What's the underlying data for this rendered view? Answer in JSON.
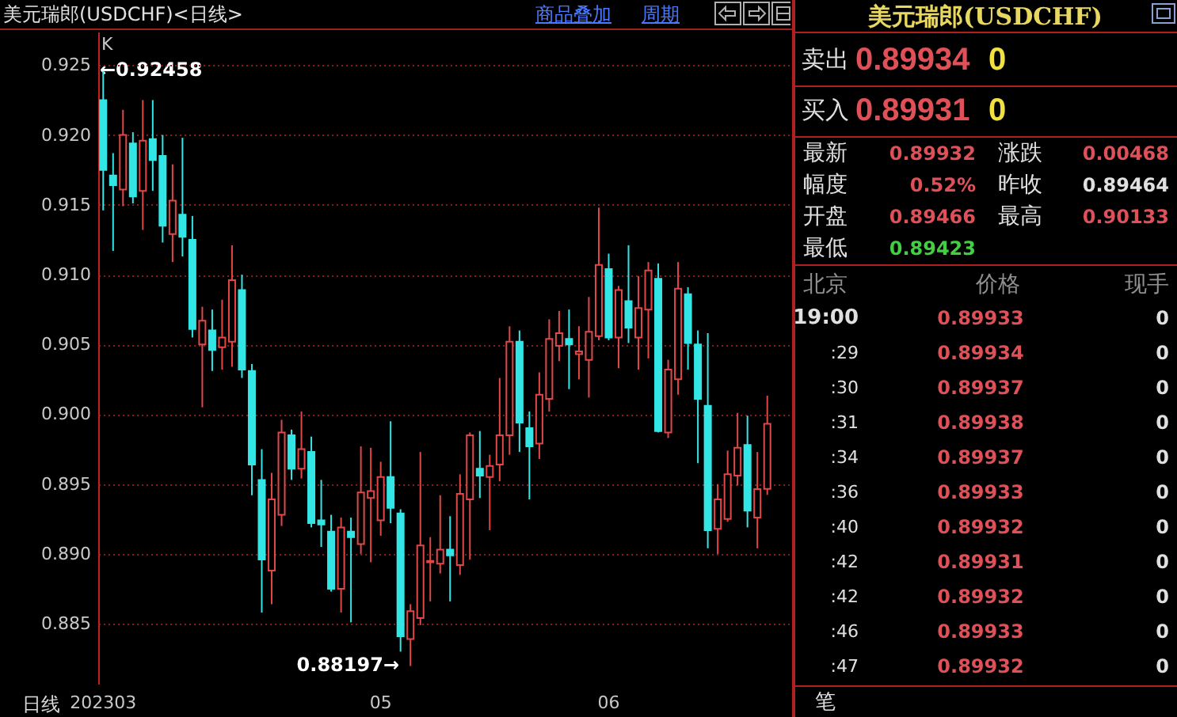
{
  "chart_data": [
    {
      "type": "candlestick",
      "title": "美元瑞郎(USDCHF)<日线>",
      "categories": [
        "202303",
        null,
        null,
        null,
        null,
        null,
        null,
        null,
        null,
        null,
        null,
        null,
        null,
        null,
        null,
        null,
        null,
        null,
        null,
        null,
        null,
        null,
        null,
        null,
        null,
        null,
        null,
        null,
        "05",
        null,
        null,
        null,
        null,
        null,
        null,
        null,
        null,
        null,
        null,
        null,
        null,
        null,
        null,
        null,
        null,
        null,
        null,
        null,
        null,
        null,
        null,
        "06",
        null,
        null,
        null,
        null,
        null,
        null,
        null,
        null,
        null,
        null,
        null,
        null,
        null,
        null,
        null,
        null
      ],
      "ohlc": [
        [
          0.9225,
          0.92458,
          0.9146,
          0.9175
        ],
        [
          0.9171,
          0.9187,
          0.9117,
          0.9164
        ],
        [
          0.9161,
          0.9218,
          0.9149,
          0.92
        ],
        [
          0.9194,
          0.9202,
          0.9151,
          0.9156
        ],
        [
          0.916,
          0.9225,
          0.9132,
          0.9196
        ],
        [
          0.9197,
          0.9225,
          0.916,
          0.9182
        ],
        [
          0.9185,
          0.92,
          0.9123,
          0.9135
        ],
        [
          0.9129,
          0.9179,
          0.9109,
          0.9153
        ],
        [
          0.9143,
          0.9198,
          0.9113,
          0.9127
        ],
        [
          0.9125,
          0.9142,
          0.9055,
          0.9061
        ],
        [
          0.905,
          0.9077,
          0.9005,
          0.9067
        ],
        [
          0.906,
          0.9075,
          0.9031,
          0.9046
        ],
        [
          0.9048,
          0.9082,
          0.9032,
          0.9055
        ],
        [
          0.9052,
          0.9121,
          0.9034,
          0.9096
        ],
        [
          0.9089,
          0.91,
          0.9026,
          0.9032
        ],
        [
          0.9031,
          0.9036,
          0.8942,
          0.8964
        ],
        [
          0.8953,
          0.8975,
          0.8858,
          0.8896
        ],
        [
          0.8888,
          0.8958,
          0.8864,
          0.8939
        ],
        [
          0.8928,
          0.8996,
          0.892,
          0.8987
        ],
        [
          0.8985,
          0.8989,
          0.8953,
          0.8961
        ],
        [
          0.8961,
          0.9002,
          0.8954,
          0.8975
        ],
        [
          0.8973,
          0.8984,
          0.8919,
          0.8922
        ],
        [
          0.8924,
          0.8953,
          0.8905,
          0.8921
        ],
        [
          0.8916,
          0.8928,
          0.8873,
          0.8875
        ],
        [
          0.8875,
          0.8926,
          0.8858,
          0.8919
        ],
        [
          0.8916,
          0.8926,
          0.8851,
          0.8912
        ],
        [
          0.8907,
          0.8977,
          0.89,
          0.8944
        ],
        [
          0.894,
          0.8976,
          0.8894,
          0.8945
        ],
        [
          0.8924,
          0.8966,
          0.8913,
          0.8955
        ],
        [
          0.8955,
          0.8995,
          0.8922,
          0.8933
        ],
        [
          0.8929,
          0.8932,
          0.883,
          0.8841
        ],
        [
          0.8839,
          0.8864,
          0.88197,
          0.8859
        ],
        [
          0.8854,
          0.8973,
          0.8849,
          0.8906
        ],
        [
          0.8894,
          0.8912,
          0.8866,
          0.8895
        ],
        [
          0.8893,
          0.8942,
          0.8886,
          0.8903
        ],
        [
          0.8903,
          0.8927,
          0.8866,
          0.8899
        ],
        [
          0.8892,
          0.8957,
          0.8885,
          0.8943
        ],
        [
          0.8939,
          0.8987,
          0.8896,
          0.8985
        ],
        [
          0.8961,
          0.8988,
          0.894,
          0.8956
        ],
        [
          0.8955,
          0.8971,
          0.8917,
          0.8963
        ],
        [
          0.8964,
          0.9026,
          0.8952,
          0.8985
        ],
        [
          0.8985,
          0.9063,
          0.8971,
          0.9052
        ],
        [
          0.9052,
          0.906,
          0.8973,
          0.8994
        ],
        [
          0.899,
          0.9002,
          0.8939,
          0.8977
        ],
        [
          0.8979,
          0.903,
          0.8968,
          0.9014
        ],
        [
          0.9011,
          0.9068,
          0.9002,
          0.9054
        ],
        [
          0.9049,
          0.9074,
          0.9038,
          0.9058
        ],
        [
          0.9054,
          0.9075,
          0.9018,
          0.905
        ],
        [
          0.9043,
          0.9063,
          0.9025,
          0.9045
        ],
        [
          0.9039,
          0.9084,
          0.9012,
          0.9059
        ],
        [
          0.9056,
          0.9148,
          0.9053,
          0.9107
        ],
        [
          0.9104,
          0.9115,
          0.9053,
          0.9055
        ],
        [
          0.9055,
          0.9092,
          0.9033,
          0.9089
        ],
        [
          0.9081,
          0.9121,
          0.9051,
          0.9062
        ],
        [
          0.9055,
          0.9099,
          0.9032,
          0.9076
        ],
        [
          0.9075,
          0.9109,
          0.904,
          0.9103
        ],
        [
          0.9097,
          0.9108,
          0.8987,
          0.8988
        ],
        [
          0.8987,
          0.9039,
          0.8983,
          0.9032
        ],
        [
          0.9025,
          0.9109,
          0.9014,
          0.909
        ],
        [
          0.9086,
          0.9091,
          0.9032,
          0.9051
        ],
        [
          0.905,
          0.906,
          0.8965,
          0.9011
        ],
        [
          0.9006,
          0.9058,
          0.8904,
          0.8917
        ],
        [
          0.8918,
          0.895,
          0.89,
          0.8939
        ],
        [
          0.8925,
          0.8974,
          0.8923,
          0.8957
        ],
        [
          0.8956,
          0.9001,
          0.8949,
          0.8976
        ],
        [
          0.8978,
          0.8999,
          0.8919,
          0.8931
        ],
        [
          0.8926,
          0.8973,
          0.8904,
          0.89464
        ],
        [
          0.89466,
          0.90133,
          0.89423,
          0.89932
        ]
      ],
      "colors": [
        "#33e6e6",
        "#33e6e6",
        "#e04848",
        "#33e6e6",
        "#e04848",
        "#33e6e6",
        "#33e6e6",
        "#e04848",
        "#33e6e6",
        "#33e6e6",
        "#e04848",
        "#33e6e6",
        "#e04848",
        "#e04848",
        "#33e6e6",
        "#33e6e6",
        "#33e6e6",
        "#e04848",
        "#e04848",
        "#33e6e6",
        "#e04848",
        "#33e6e6",
        "#33e6e6",
        "#33e6e6",
        "#e04848",
        "#33e6e6",
        "#e04848",
        "#e04848",
        "#e04848",
        "#33e6e6",
        "#33e6e6",
        "#e04848",
        "#e04848",
        "#e04848",
        "#e04848",
        "#33e6e6",
        "#e04848",
        "#e04848",
        "#33e6e6",
        "#e04848",
        "#e04848",
        "#e04848",
        "#33e6e6",
        "#33e6e6",
        "#e04848",
        "#e04848",
        "#e04848",
        "#33e6e6",
        "#e04848",
        "#e04848",
        "#e04848",
        "#33e6e6",
        "#e04848",
        "#33e6e6",
        "#e04848",
        "#e04848",
        "#33e6e6",
        "#e04848",
        "#e04848",
        "#33e6e6",
        "#33e6e6",
        "#33e6e6",
        "#e04848",
        "#e04848",
        "#e04848",
        "#33e6e6",
        "#e04848",
        "#e04848"
      ],
      "ylim": [
        0.8807,
        0.9274
      ],
      "yticks": [
        0.885,
        {
          "value": 0.89,
          "label": "0.890"
        },
        0.895,
        {
          "value": 0.9,
          "label": "0.900"
        },
        0.905,
        {
          "value": 0.91,
          "label": "0.910"
        },
        0.915,
        {
          "value": 0.92,
          "label": "0.920"
        },
        0.925
      ],
      "grid": "y",
      "annotations": [
        "K",
        "←0.92458",
        "0.88197→",
        "日线",
        "商品叠加",
        "周期"
      ]
    },
    {
      "type": "other",
      "title": "美元瑞郎(USDCHF)",
      "annotations": [
        "卖出",
        "0.89934",
        "0",
        "买入",
        "0.89931",
        "0",
        "最新",
        "0.89932",
        "涨跌",
        "0.00468",
        "幅度",
        "0.52%",
        "昨收",
        "0.89464",
        "开盘",
        "0.89466",
        "最高",
        "0.90133",
        "最低",
        "0.89423",
        "北京",
        "价格",
        "现手",
        "19:00",
        "0.89933",
        "0",
        ":29",
        "0.89934",
        "0",
        ":30",
        "0.89937",
        "0",
        ":31",
        "0.89938",
        "0",
        ":34",
        "0.89937",
        "0",
        ":36",
        "0.89933",
        "0",
        ":40",
        "0.89932",
        "0",
        ":42",
        "0.89931",
        "0",
        ":42",
        "0.89932",
        "0",
        ":46",
        "0.89933",
        "0",
        ":47",
        "0.89932",
        "0",
        "笔"
      ]
    }
  ]
}
